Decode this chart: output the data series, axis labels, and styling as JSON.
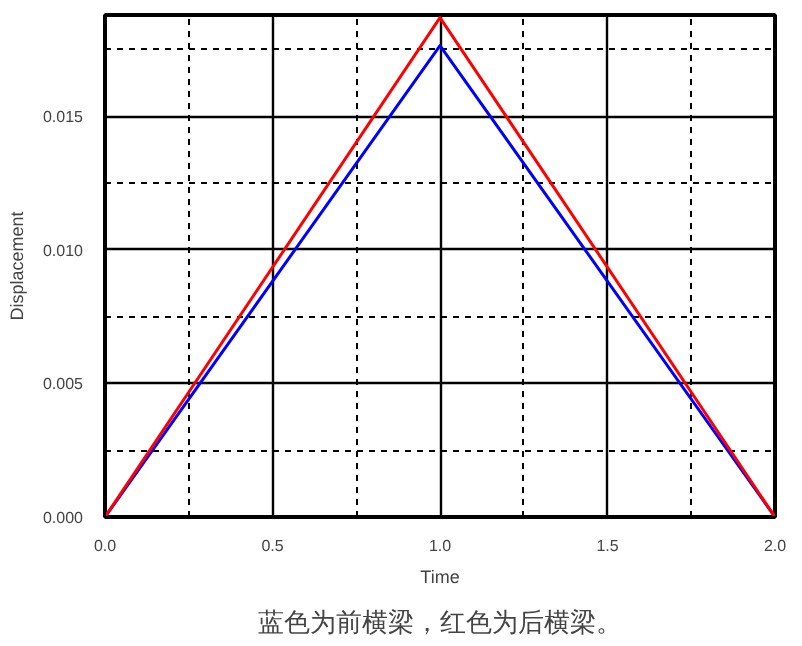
{
  "chart_data": {
    "type": "line",
    "xlabel": "Time",
    "ylabel": "Displacement",
    "x": [
      0,
      1.0,
      2.0
    ],
    "series": [
      {
        "color": "#0000ff",
        "values": [
          0,
          0.01765,
          0
        ]
      },
      {
        "color": "#ff0000",
        "values": [
          0,
          0.0187,
          0
        ]
      }
    ],
    "xlim": [
      0,
      2.0
    ],
    "xticks": [
      {
        "value": 0,
        "label": "0.0"
      },
      0.5,
      {
        "value": 1.0,
        "label": "1.0"
      },
      1.5,
      {
        "value": 2.0,
        "label": "2.0"
      }
    ],
    "ylim": [
      0,
      0.0188
    ],
    "yticks": [
      {
        "value": 0,
        "label": "0.000"
      },
      0.005,
      {
        "value": 0.01,
        "label": "0.010"
      },
      0.015
    ],
    "grid": true,
    "marker": "none",
    "line_style": "solid",
    "annotations": [
      "蓝色为前横梁，红色为后横梁。"
    ]
  }
}
